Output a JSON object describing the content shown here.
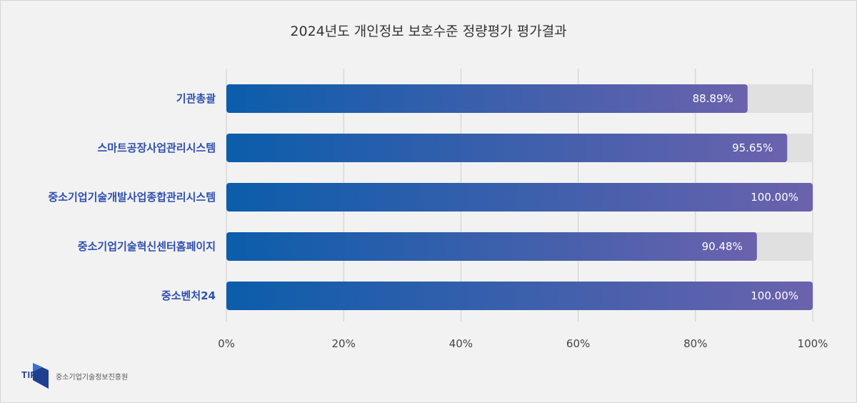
{
  "chart_data": {
    "type": "bar",
    "orientation": "horizontal",
    "title": "2024년도 개인정보 보호수준 정량평가 평가결과",
    "categories": [
      "기관총괄",
      "스마트공장사업관리시스템",
      "중소기업기술개발사업종합관리시스템",
      "중소기업기술혁신센터홈페이지",
      "중소벤처24"
    ],
    "values": [
      88.89,
      95.65,
      100.0,
      90.48,
      100.0
    ],
    "value_labels": [
      "88.89%",
      "95.65%",
      "100.00%",
      "90.48%",
      "100.00%"
    ],
    "xlim": [
      0,
      100
    ],
    "x_ticks": [
      0,
      20,
      40,
      60,
      80,
      100
    ],
    "x_tick_labels": [
      "0%",
      "20%",
      "40%",
      "60%",
      "80%",
      "100%"
    ],
    "grid": true,
    "background_track": true,
    "colors": {
      "bar_gradient_start": "#0b5dab",
      "bar_gradient_end": "#6b62ad",
      "track": "#e0e0e0",
      "grid": "#cccccc",
      "category_label": "#2e4fb0"
    }
  },
  "logo": {
    "mark_text": "TIPA",
    "org_name": "중소기업기술정보진흥원",
    "color": "#1f3f8f"
  }
}
